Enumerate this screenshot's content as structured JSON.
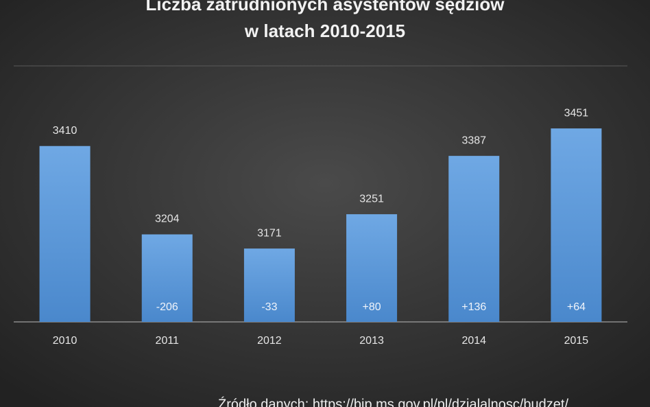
{
  "chart_data": {
    "type": "bar",
    "title": [
      "Liczba  zatrudnionych  asystentów  sędziów",
      "w latach  2010-2015"
    ],
    "categories": [
      "2010",
      "2011",
      "2012",
      "2013",
      "2014",
      "2015"
    ],
    "values": [
      3410,
      3204,
      3171,
      3251,
      3387,
      3451
    ],
    "change_labels": [
      null,
      "-206",
      "-33",
      "+80",
      "+136",
      "+64"
    ],
    "color": "#5b9bd5",
    "ylim": [
      3000,
      3600
    ],
    "source": "Źródło danych: https://bip.ms.gov.pl/pl/dzialalnosc/budzet/"
  }
}
